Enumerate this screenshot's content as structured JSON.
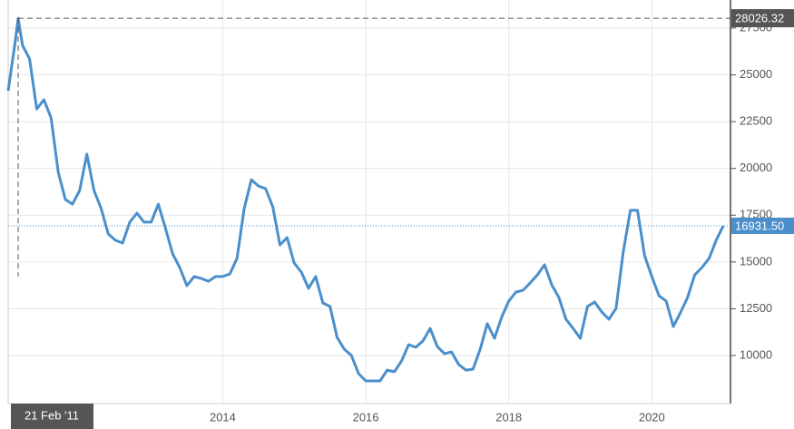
{
  "chart_data": {
    "type": "line",
    "x": [
      2011.0,
      2011.1,
      2011.14,
      2011.2,
      2011.3,
      2011.4,
      2011.5,
      2011.6,
      2011.7,
      2011.8,
      2011.9,
      2012.0,
      2012.1,
      2012.2,
      2012.3,
      2012.4,
      2012.5,
      2012.6,
      2012.7,
      2012.8,
      2012.9,
      2013.0,
      2013.1,
      2013.2,
      2013.3,
      2013.4,
      2013.5,
      2013.6,
      2013.7,
      2013.8,
      2013.9,
      2014.0,
      2014.1,
      2014.2,
      2014.3,
      2014.4,
      2014.5,
      2014.6,
      2014.7,
      2014.8,
      2014.9,
      2015.0,
      2015.1,
      2015.2,
      2015.3,
      2015.4,
      2015.5,
      2015.6,
      2015.7,
      2015.8,
      2015.9,
      2016.0,
      2016.1,
      2016.2,
      2016.3,
      2016.4,
      2016.5,
      2016.6,
      2016.7,
      2016.8,
      2016.9,
      2017.0,
      2017.1,
      2017.2,
      2017.3,
      2017.4,
      2017.5,
      2017.6,
      2017.7,
      2017.8,
      2017.9,
      2018.0,
      2018.1,
      2018.2,
      2018.3,
      2018.4,
      2018.5,
      2018.6,
      2018.7,
      2018.8,
      2018.9,
      2019.0,
      2019.1,
      2019.2,
      2019.3,
      2019.4,
      2019.5,
      2019.6,
      2019.7,
      2019.8,
      2019.9,
      2020.0,
      2020.1,
      2020.2,
      2020.3,
      2020.4,
      2020.5,
      2020.6,
      2020.7,
      2020.8,
      2020.9,
      2021.0
    ],
    "series": [
      {
        "color": "#4a8fcb",
        "values": [
          24150,
          26820,
          28026.32,
          26580,
          25850,
          23180,
          23670,
          22700,
          19790,
          18340,
          18090,
          18820,
          20760,
          18820,
          17850,
          16500,
          16160,
          16010,
          17130,
          17610,
          17130,
          17130,
          18090,
          16790,
          15430,
          14700,
          13730,
          14220,
          14120,
          13970,
          14220,
          14220,
          14360,
          15190,
          17850,
          19400,
          19060,
          18920,
          17950,
          15910,
          16300,
          14940,
          14460,
          13590,
          14220,
          12810,
          12620,
          10970,
          10340,
          10000,
          9030,
          8640,
          8640,
          8640,
          9220,
          9130,
          9710,
          10580,
          10440,
          10780,
          11450,
          10480,
          10100,
          10190,
          9520,
          9220,
          9270,
          10340,
          11700,
          10920,
          12040,
          12910,
          13390,
          13490,
          13880,
          14310,
          14850,
          13780,
          13100,
          11940,
          11450,
          10920,
          12620,
          12860,
          12330,
          11940,
          12520,
          15530,
          17760,
          17760,
          15330,
          14220,
          13200,
          12910,
          11550,
          12280,
          13100,
          14310,
          14700,
          15190,
          16160,
          16931.5
        ]
      }
    ],
    "xlim": [
      2011.0,
      2021.1
    ],
    "xticks": [
      2014,
      2016,
      2018,
      2020
    ],
    "ylim": [
      7430,
      29000
    ],
    "yticks": [
      10000,
      12500,
      15000,
      17500,
      20000,
      22500,
      25000,
      27500
    ],
    "grid": true,
    "max_value": 28026.32,
    "last_value": {
      "value": 16931.5,
      "label": "16931.50"
    },
    "crosshair_date": {
      "value": 2011.14,
      "label": "21 Feb '11"
    }
  }
}
